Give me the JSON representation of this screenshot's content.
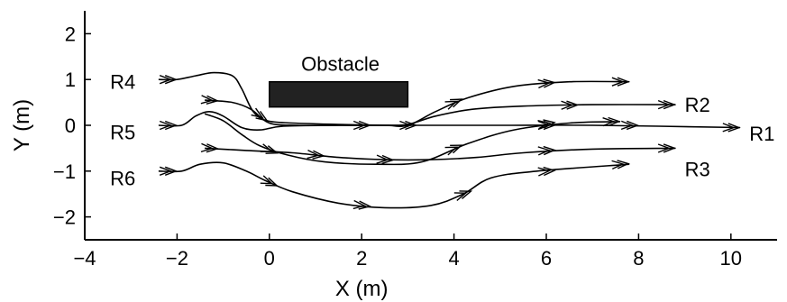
{
  "chart_data": {
    "type": "line",
    "xlabel": "X (m)",
    "ylabel": "Y (m)",
    "xlim": [
      -4,
      11
    ],
    "ylim": [
      -2.5,
      2.5
    ],
    "x_ticks": [
      -4,
      -2,
      0,
      2,
      4,
      6,
      8,
      10
    ],
    "x_tick_labels": [
      "−4",
      "−2",
      "0",
      "2",
      "4",
      "6",
      "8",
      "10"
    ],
    "y_ticks": [
      -2,
      -1,
      0,
      1,
      2
    ],
    "y_tick_labels": [
      "−2",
      "−1",
      "0",
      "1",
      "2"
    ],
    "grid": false,
    "obstacle": {
      "label": "Obstacle",
      "x": [
        0,
        3
      ],
      "y": [
        0.4,
        0.95
      ]
    },
    "series": [
      {
        "name": "R4",
        "label_position": [
          -3.45,
          0.95
        ],
        "line_color": "#000000",
        "points": [
          [
            -2.4,
            1.0
          ],
          [
            -2.0,
            1.0
          ],
          [
            -1.6,
            1.08
          ],
          [
            -1.2,
            1.15
          ],
          [
            -0.8,
            1.08
          ],
          [
            -0.6,
            0.8
          ],
          [
            -0.35,
            0.3
          ],
          [
            -0.05,
            0.1
          ],
          [
            0.5,
            0.05
          ],
          [
            1.5,
            0.02
          ],
          [
            2.5,
            0.0
          ],
          [
            3.0,
            0.0
          ],
          [
            3.6,
            0.3
          ],
          [
            4.3,
            0.6
          ],
          [
            5.3,
            0.85
          ],
          [
            6.5,
            0.95
          ],
          [
            7.8,
            0.95
          ]
        ]
      },
      {
        "name": "R2",
        "label_position": [
          9.0,
          0.45
        ],
        "line_color": "#000000",
        "points": [
          [
            -1.4,
            0.55
          ],
          [
            -0.8,
            0.5
          ],
          [
            -0.4,
            0.35
          ],
          [
            0.0,
            0.05
          ],
          [
            0.6,
            0.0
          ],
          [
            1.5,
            0.0
          ],
          [
            2.5,
            0.0
          ],
          [
            3.0,
            0.02
          ],
          [
            3.6,
            0.2
          ],
          [
            4.4,
            0.35
          ],
          [
            5.5,
            0.42
          ],
          [
            7.0,
            0.45
          ],
          [
            8.8,
            0.45
          ]
        ]
      },
      {
        "name": "R1",
        "label_position": [
          10.4,
          -0.18
        ],
        "line_color": "#000000",
        "points": [
          [
            -2.4,
            0.0
          ],
          [
            -1.9,
            0.0
          ],
          [
            -1.6,
            0.2
          ],
          [
            -1.3,
            0.3
          ],
          [
            -1.0,
            0.2
          ],
          [
            -0.6,
            -0.05
          ],
          [
            -0.2,
            -0.1
          ],
          [
            0.3,
            -0.02
          ],
          [
            1.5,
            0.0
          ],
          [
            3.0,
            0.0
          ],
          [
            5.0,
            0.0
          ],
          [
            7.0,
            0.0
          ],
          [
            10.2,
            -0.05
          ]
        ]
      },
      {
        "name": "R5",
        "label_position": [
          -3.45,
          -0.15
        ],
        "line_color": "#000000",
        "points": [
          [
            -1.4,
            0.25
          ],
          [
            -1.0,
            0.1
          ],
          [
            -0.6,
            -0.2
          ],
          [
            -0.2,
            -0.45
          ],
          [
            0.4,
            -0.65
          ],
          [
            1.2,
            -0.8
          ],
          [
            2.3,
            -0.85
          ],
          [
            3.3,
            -0.8
          ],
          [
            4.3,
            -0.4
          ],
          [
            5.3,
            -0.1
          ],
          [
            6.5,
            0.05
          ],
          [
            7.6,
            0.08
          ]
        ]
      },
      {
        "name": "R3",
        "label_position": [
          9.0,
          -0.95
        ],
        "line_color": "#000000",
        "points": [
          [
            -1.4,
            -0.5
          ],
          [
            -0.5,
            -0.55
          ],
          [
            0.5,
            -0.6
          ],
          [
            1.5,
            -0.7
          ],
          [
            2.5,
            -0.75
          ],
          [
            3.5,
            -0.75
          ],
          [
            4.5,
            -0.7
          ],
          [
            5.5,
            -0.6
          ],
          [
            7.0,
            -0.52
          ],
          [
            8.8,
            -0.5
          ]
        ]
      },
      {
        "name": "R6",
        "label_position": [
          -3.45,
          -1.15
        ],
        "line_color": "#000000",
        "points": [
          [
            -2.4,
            -1.0
          ],
          [
            -1.9,
            -1.0
          ],
          [
            -1.5,
            -0.85
          ],
          [
            -1.0,
            -0.82
          ],
          [
            -0.5,
            -1.0
          ],
          [
            -0.1,
            -1.2
          ],
          [
            0.5,
            -1.45
          ],
          [
            1.5,
            -1.7
          ],
          [
            2.5,
            -1.8
          ],
          [
            3.5,
            -1.75
          ],
          [
            4.2,
            -1.5
          ],
          [
            4.8,
            -1.15
          ],
          [
            5.8,
            -1.0
          ],
          [
            7.8,
            -0.85
          ]
        ]
      }
    ],
    "arrow_markers": [
      {
        "series": 0,
        "at": [
          [
            -2.2,
            1.0
          ],
          [
            -0.2,
            0.2
          ],
          [
            4.0,
            0.5
          ],
          [
            6.0,
            0.92
          ],
          [
            7.6,
            0.95
          ]
        ]
      },
      {
        "series": 1,
        "at": [
          [
            -1.3,
            0.55
          ],
          [
            2.0,
            0.0
          ],
          [
            6.5,
            0.44
          ],
          [
            8.6,
            0.45
          ]
        ]
      },
      {
        "series": 2,
        "at": [
          [
            -2.2,
            0.0
          ],
          [
            3.0,
            0.0
          ],
          [
            6.0,
            0.0
          ],
          [
            7.8,
            0.0
          ],
          [
            10.0,
            -0.05
          ]
        ]
      },
      {
        "series": 3,
        "at": [
          [
            0.0,
            -0.55
          ],
          [
            4.0,
            -0.5
          ],
          [
            6.0,
            0.04
          ],
          [
            7.4,
            0.08
          ]
        ]
      },
      {
        "series": 4,
        "at": [
          [
            -1.3,
            -0.5
          ],
          [
            1.0,
            -0.65
          ],
          [
            2.5,
            -0.75
          ],
          [
            6.0,
            -0.55
          ],
          [
            8.6,
            -0.5
          ]
        ]
      },
      {
        "series": 5,
        "at": [
          [
            -2.2,
            -1.0
          ],
          [
            0.0,
            -1.25
          ],
          [
            2.0,
            -1.75
          ],
          [
            4.2,
            -1.5
          ],
          [
            6.0,
            -1.0
          ],
          [
            7.6,
            -0.85
          ]
        ]
      }
    ]
  }
}
